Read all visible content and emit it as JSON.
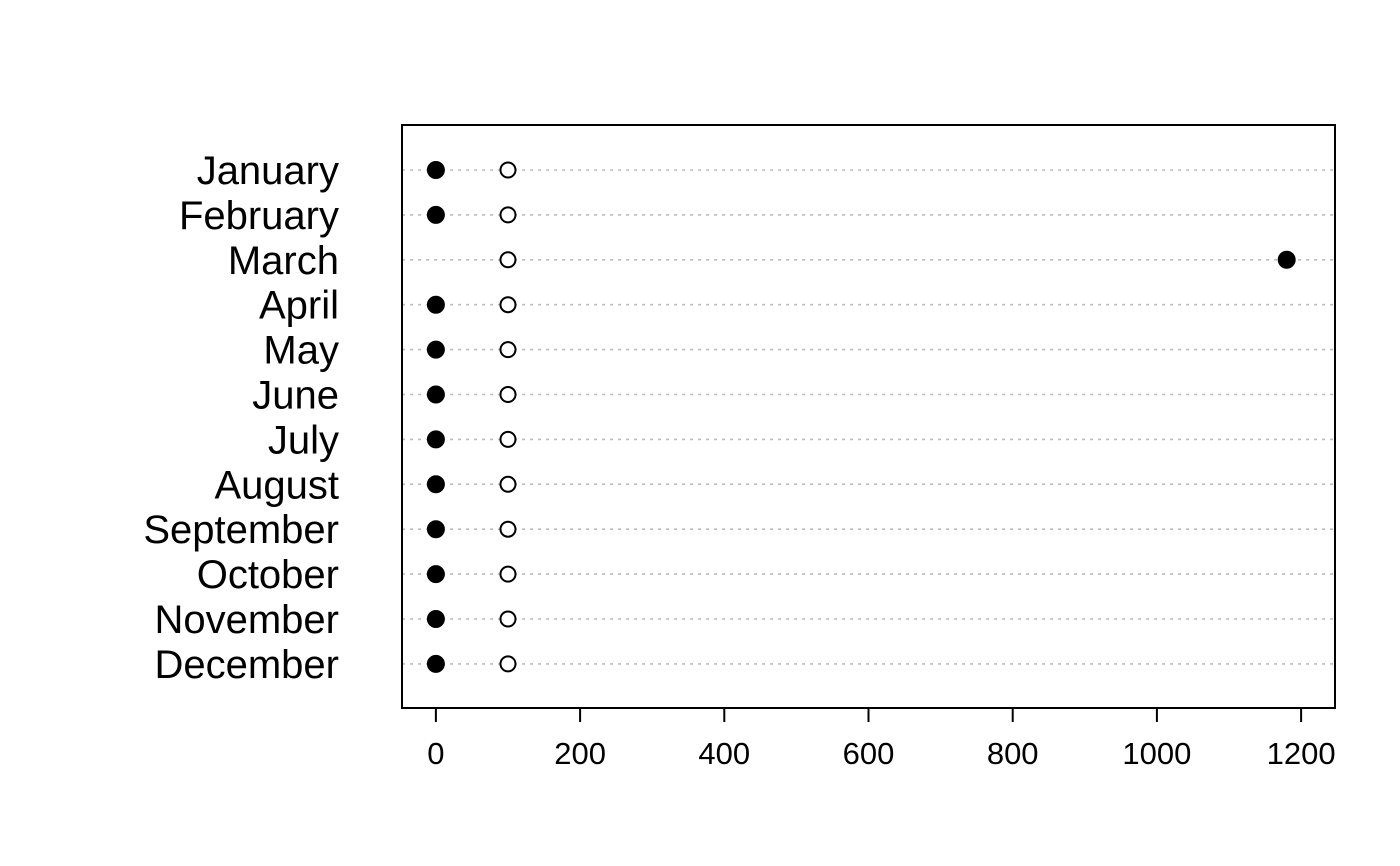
{
  "chart_data": {
    "type": "scatter",
    "subtype": "dotchart",
    "title": "",
    "xlabel": "",
    "ylabel": "",
    "categories": [
      "January",
      "February",
      "March",
      "April",
      "May",
      "June",
      "July",
      "August",
      "September",
      "October",
      "November",
      "December"
    ],
    "series": [
      {
        "marker": "filled-circle",
        "color": "#000000",
        "values": [
          0,
          0,
          1180,
          0,
          0,
          0,
          0,
          0,
          0,
          0,
          0,
          0
        ]
      },
      {
        "marker": "open-circle",
        "color": "#000000",
        "values": [
          100,
          100,
          100,
          100,
          100,
          100,
          100,
          100,
          100,
          100,
          100,
          100
        ]
      }
    ],
    "xlim": [
      -47,
      1247
    ],
    "xticks": [
      0,
      200,
      400,
      600,
      800,
      1000,
      1200
    ],
    "xtick_labels": [
      "0",
      "200",
      "400",
      "600",
      "800",
      "1000",
      "1200"
    ],
    "grid": "dotted horizontal lines per category",
    "legend": "none"
  }
}
